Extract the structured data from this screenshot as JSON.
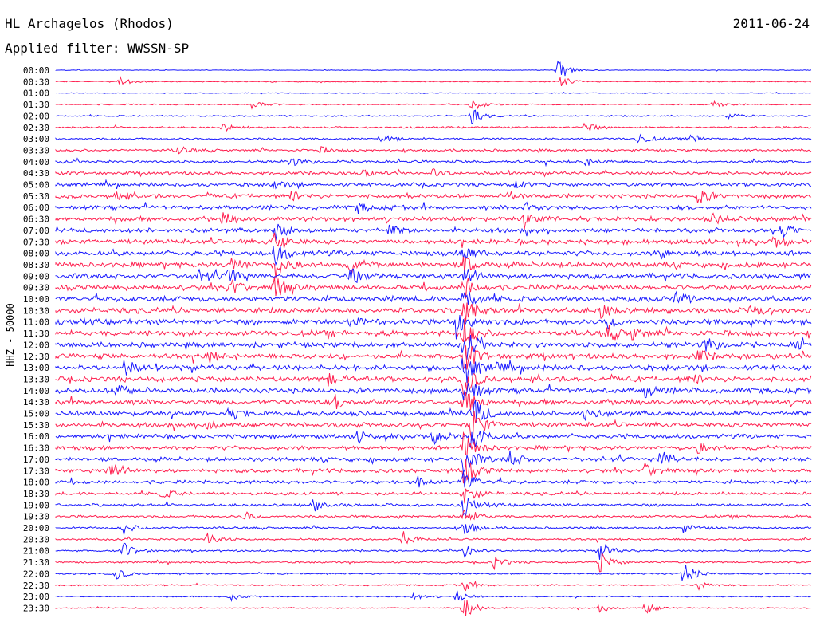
{
  "header": {
    "station": "HL Archagelos (Rhodos)",
    "date": "2011-06-24",
    "filter": "Applied filter: WWSSN-SP"
  },
  "chart_data": {
    "type": "line",
    "title": "HL Archagelos (Rhodos)",
    "ylabel": "HHZ - 50000",
    "xlabel": "",
    "colors": {
      "even_rows": "#1a1aff",
      "odd_rows": "#ff1f4f"
    },
    "grid": false,
    "rows": [
      "00:00",
      "00:30",
      "01:00",
      "01:30",
      "02:00",
      "02:30",
      "03:00",
      "03:30",
      "04:00",
      "04:30",
      "05:00",
      "05:30",
      "06:00",
      "06:30",
      "07:00",
      "07:30",
      "08:00",
      "08:30",
      "09:00",
      "09:30",
      "10:00",
      "10:30",
      "11:00",
      "11:30",
      "12:00",
      "12:30",
      "13:00",
      "13:30",
      "14:00",
      "14:30",
      "15:00",
      "15:30",
      "16:00",
      "16:30",
      "17:00",
      "17:30",
      "18:00",
      "18:30",
      "19:00",
      "19:30",
      "20:00",
      "20:30",
      "21:00",
      "21:30",
      "22:00",
      "22:30",
      "23:00",
      "23:30"
    ],
    "noise_level": [
      0.3,
      0.5,
      0.4,
      0.6,
      0.7,
      0.9,
      1.0,
      1.2,
      1.4,
      1.6,
      1.8,
      2.0,
      2.1,
      2.2,
      2.2,
      2.3,
      2.4,
      2.5,
      2.5,
      2.5,
      2.6,
      2.6,
      2.7,
      2.7,
      2.6,
      2.6,
      2.6,
      2.5,
      2.5,
      2.4,
      2.3,
      2.2,
      2.1,
      2.0,
      2.0,
      1.9,
      1.7,
      1.5,
      1.4,
      1.2,
      1.1,
      1.0,
      0.9,
      0.9,
      0.8,
      0.7,
      0.6,
      0.6
    ],
    "events": [
      {
        "row": 0,
        "t": 0.665,
        "amp": 14
      },
      {
        "row": 1,
        "t": 0.085,
        "amp": 6
      },
      {
        "row": 1,
        "t": 0.665,
        "amp": 8
      },
      {
        "row": 3,
        "t": 0.26,
        "amp": 7
      },
      {
        "row": 3,
        "t": 0.55,
        "amp": 9
      },
      {
        "row": 3,
        "t": 0.87,
        "amp": 5
      },
      {
        "row": 4,
        "t": 0.55,
        "amp": 10
      },
      {
        "row": 4,
        "t": 0.89,
        "amp": 5
      },
      {
        "row": 5,
        "t": 0.22,
        "amp": 5
      },
      {
        "row": 5,
        "t": 0.7,
        "amp": 7
      },
      {
        "row": 6,
        "t": 0.43,
        "amp": 6
      },
      {
        "row": 6,
        "t": 0.77,
        "amp": 8
      },
      {
        "row": 6,
        "t": 0.84,
        "amp": 6
      },
      {
        "row": 7,
        "t": 0.16,
        "amp": 6
      },
      {
        "row": 7,
        "t": 0.35,
        "amp": 4
      },
      {
        "row": 8,
        "t": 0.31,
        "amp": 6
      },
      {
        "row": 8,
        "t": 0.7,
        "amp": 5
      },
      {
        "row": 9,
        "t": 0.4,
        "amp": 7
      },
      {
        "row": 9,
        "t": 0.5,
        "amp": 6
      },
      {
        "row": 10,
        "t": 0.29,
        "amp": 6
      },
      {
        "row": 10,
        "t": 0.61,
        "amp": 6
      },
      {
        "row": 11,
        "t": 0.08,
        "amp": 6
      },
      {
        "row": 11,
        "t": 0.31,
        "amp": 7
      },
      {
        "row": 11,
        "t": 0.6,
        "amp": 6
      },
      {
        "row": 11,
        "t": 0.85,
        "amp": 10
      },
      {
        "row": 12,
        "t": 0.4,
        "amp": 6
      },
      {
        "row": 12,
        "t": 0.62,
        "amp": 7
      },
      {
        "row": 13,
        "t": 0.22,
        "amp": 8
      },
      {
        "row": 13,
        "t": 0.62,
        "amp": 7
      },
      {
        "row": 13,
        "t": 0.87,
        "amp": 6
      },
      {
        "row": 14,
        "t": 0.29,
        "amp": 12
      },
      {
        "row": 14,
        "t": 0.44,
        "amp": 7
      },
      {
        "row": 14,
        "t": 0.96,
        "amp": 8
      },
      {
        "row": 15,
        "t": 0.29,
        "amp": 14
      },
      {
        "row": 15,
        "t": 0.95,
        "amp": 6
      },
      {
        "row": 16,
        "t": 0.29,
        "amp": 16
      },
      {
        "row": 16,
        "t": 0.8,
        "amp": 7
      },
      {
        "row": 16,
        "t": 0.54,
        "amp": 12
      },
      {
        "row": 17,
        "t": 0.23,
        "amp": 12
      },
      {
        "row": 17,
        "t": 0.29,
        "amp": 16
      },
      {
        "row": 17,
        "t": 0.39,
        "amp": 8
      },
      {
        "row": 17,
        "t": 0.54,
        "amp": 12
      },
      {
        "row": 18,
        "t": 0.19,
        "amp": 8
      },
      {
        "row": 18,
        "t": 0.23,
        "amp": 14
      },
      {
        "row": 18,
        "t": 0.39,
        "amp": 10
      },
      {
        "row": 18,
        "t": 0.54,
        "amp": 14
      },
      {
        "row": 19,
        "t": 0.23,
        "amp": 14
      },
      {
        "row": 19,
        "t": 0.29,
        "amp": 14
      },
      {
        "row": 19,
        "t": 0.54,
        "amp": 16
      },
      {
        "row": 20,
        "t": 0.54,
        "amp": 18
      },
      {
        "row": 20,
        "t": 0.82,
        "amp": 8
      },
      {
        "row": 21,
        "t": 0.54,
        "amp": 18
      },
      {
        "row": 21,
        "t": 0.72,
        "amp": 10
      },
      {
        "row": 21,
        "t": 0.92,
        "amp": 10
      },
      {
        "row": 22,
        "t": 0.53,
        "amp": 20
      },
      {
        "row": 22,
        "t": 0.39,
        "amp": 8
      },
      {
        "row": 22,
        "t": 0.73,
        "amp": 10
      },
      {
        "row": 23,
        "t": 0.54,
        "amp": 20
      },
      {
        "row": 23,
        "t": 0.73,
        "amp": 10
      },
      {
        "row": 23,
        "t": 0.76,
        "amp": 8
      },
      {
        "row": 24,
        "t": 0.54,
        "amp": 22
      },
      {
        "row": 24,
        "t": 0.86,
        "amp": 10
      },
      {
        "row": 24,
        "t": 0.98,
        "amp": 8
      },
      {
        "row": 25,
        "t": 0.54,
        "amp": 22
      },
      {
        "row": 25,
        "t": 0.2,
        "amp": 8
      },
      {
        "row": 25,
        "t": 0.85,
        "amp": 8
      },
      {
        "row": 26,
        "t": 0.54,
        "amp": 24
      },
      {
        "row": 26,
        "t": 0.09,
        "amp": 10
      },
      {
        "row": 26,
        "t": 0.58,
        "amp": 8
      },
      {
        "row": 27,
        "t": 0.54,
        "amp": 24
      },
      {
        "row": 27,
        "t": 0.36,
        "amp": 8
      },
      {
        "row": 27,
        "t": 0.84,
        "amp": 8
      },
      {
        "row": 28,
        "t": 0.54,
        "amp": 26
      },
      {
        "row": 28,
        "t": 0.08,
        "amp": 10
      },
      {
        "row": 28,
        "t": 0.78,
        "amp": 8
      },
      {
        "row": 29,
        "t": 0.54,
        "amp": 26
      },
      {
        "row": 29,
        "t": 0.37,
        "amp": 8
      },
      {
        "row": 30,
        "t": 0.55,
        "amp": 26
      },
      {
        "row": 30,
        "t": 0.23,
        "amp": 8
      },
      {
        "row": 30,
        "t": 0.7,
        "amp": 8
      },
      {
        "row": 31,
        "t": 0.55,
        "amp": 24
      },
      {
        "row": 31,
        "t": 0.2,
        "amp": 8
      },
      {
        "row": 32,
        "t": 0.55,
        "amp": 24
      },
      {
        "row": 32,
        "t": 0.4,
        "amp": 8
      },
      {
        "row": 32,
        "t": 0.5,
        "amp": 10
      },
      {
        "row": 33,
        "t": 0.54,
        "amp": 22
      },
      {
        "row": 33,
        "t": 0.85,
        "amp": 6
      },
      {
        "row": 34,
        "t": 0.54,
        "amp": 22
      },
      {
        "row": 34,
        "t": 0.6,
        "amp": 12
      },
      {
        "row": 34,
        "t": 0.8,
        "amp": 14
      },
      {
        "row": 35,
        "t": 0.07,
        "amp": 16
      },
      {
        "row": 35,
        "t": 0.54,
        "amp": 20
      },
      {
        "row": 35,
        "t": 0.78,
        "amp": 10
      },
      {
        "row": 36,
        "t": 0.54,
        "amp": 18
      },
      {
        "row": 36,
        "t": 0.48,
        "amp": 8
      },
      {
        "row": 37,
        "t": 0.54,
        "amp": 16
      },
      {
        "row": 37,
        "t": 0.14,
        "amp": 6
      },
      {
        "row": 38,
        "t": 0.54,
        "amp": 14
      },
      {
        "row": 38,
        "t": 0.34,
        "amp": 8
      },
      {
        "row": 39,
        "t": 0.54,
        "amp": 14
      },
      {
        "row": 39,
        "t": 0.25,
        "amp": 6
      },
      {
        "row": 40,
        "t": 0.54,
        "amp": 12
      },
      {
        "row": 40,
        "t": 0.09,
        "amp": 8
      },
      {
        "row": 40,
        "t": 0.83,
        "amp": 6
      },
      {
        "row": 41,
        "t": 0.46,
        "amp": 10
      },
      {
        "row": 41,
        "t": 0.2,
        "amp": 8
      },
      {
        "row": 42,
        "t": 0.54,
        "amp": 10
      },
      {
        "row": 42,
        "t": 0.09,
        "amp": 10
      },
      {
        "row": 42,
        "t": 0.72,
        "amp": 12
      },
      {
        "row": 43,
        "t": 0.72,
        "amp": 14
      },
      {
        "row": 43,
        "t": 0.58,
        "amp": 8
      },
      {
        "row": 44,
        "t": 0.83,
        "amp": 16
      },
      {
        "row": 44,
        "t": 0.08,
        "amp": 8
      },
      {
        "row": 45,
        "t": 0.54,
        "amp": 8
      },
      {
        "row": 45,
        "t": 0.85,
        "amp": 6
      },
      {
        "row": 46,
        "t": 0.53,
        "amp": 8
      },
      {
        "row": 46,
        "t": 0.23,
        "amp": 6
      },
      {
        "row": 46,
        "t": 0.47,
        "amp": 6
      },
      {
        "row": 47,
        "t": 0.54,
        "amp": 16
      },
      {
        "row": 47,
        "t": 0.78,
        "amp": 8
      },
      {
        "row": 47,
        "t": 0.72,
        "amp": 6
      }
    ]
  }
}
